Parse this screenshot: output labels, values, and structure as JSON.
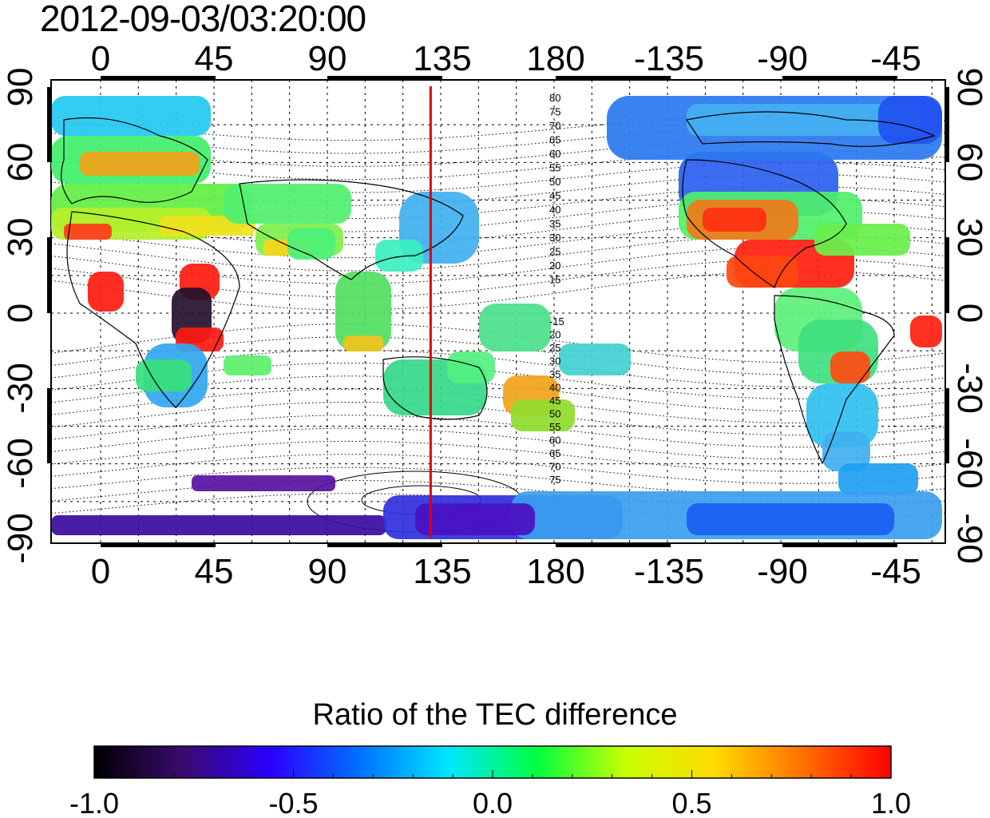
{
  "title": "2012-09-03/03:20:00",
  "map": {
    "lon_ticks": [
      "0",
      "45",
      "90",
      "135",
      "180",
      "-135",
      "-90",
      "-45"
    ],
    "lat_ticks": [
      "90",
      "60",
      "30",
      "0",
      "-30",
      "-60",
      "-90"
    ],
    "mlat_north": [
      "80",
      "75",
      "70",
      "65",
      "60",
      "55",
      "50",
      "45",
      "40",
      "35",
      "30",
      "25",
      "20",
      "15"
    ],
    "mlat_south": [
      "-15",
      "20",
      "25",
      "30",
      "35",
      "40",
      "45",
      "50",
      "55",
      "60",
      "65",
      "70",
      "75"
    ],
    "meridian_lon": 131
  },
  "colorbar": {
    "title": "Ratio of the TEC difference",
    "ticks": [
      "-1.0",
      "-0.5",
      "0.0",
      "0.5",
      "1.0"
    ],
    "colors": [
      "#000000",
      "#3a0a6e",
      "#2a00ff",
      "#0070ff",
      "#00e6ff",
      "#00ff40",
      "#c8ff00",
      "#ffdc00",
      "#ff7000",
      "#ff0000"
    ]
  }
}
